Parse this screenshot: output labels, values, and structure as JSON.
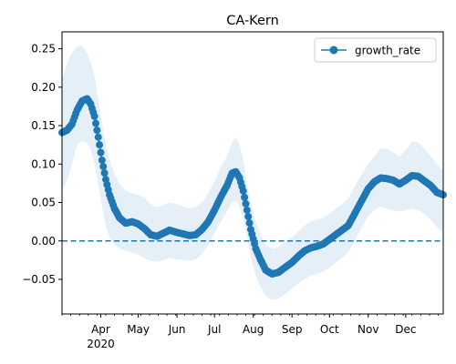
{
  "chart_data": {
    "type": "line",
    "title": "CA-Kern",
    "xlabel": "",
    "ylabel": "",
    "legend": {
      "position": "top-right",
      "entries": [
        "growth_rate"
      ]
    },
    "xlim": [
      "2020-03-01",
      "2020-12-31"
    ],
    "ylim": [
      -0.095,
      0.272
    ],
    "x_ticks": [
      {
        "date": "2020-04-01",
        "label": "Apr"
      },
      {
        "date": "2020-05-01",
        "label": "May"
      },
      {
        "date": "2020-06-01",
        "label": "Jun"
      },
      {
        "date": "2020-07-01",
        "label": "Jul"
      },
      {
        "date": "2020-08-01",
        "label": "Aug"
      },
      {
        "date": "2020-09-01",
        "label": "Sep"
      },
      {
        "date": "2020-10-01",
        "label": "Oct"
      },
      {
        "date": "2020-11-01",
        "label": "Nov"
      },
      {
        "date": "2020-12-01",
        "label": "Dec"
      }
    ],
    "year_label": "2020",
    "y_ticks": [
      -0.05,
      0.0,
      0.05,
      0.1,
      0.15,
      0.2,
      0.25
    ],
    "reference_line": {
      "y": 0.0,
      "style": "dashed"
    },
    "colors": {
      "series": "#1f77b4",
      "band": "#dce9f5"
    },
    "series": [
      {
        "name": "growth_rate",
        "marker": "circle",
        "x": [
          "2020-03-01",
          "2020-03-05",
          "2020-03-09",
          "2020-03-13",
          "2020-03-17",
          "2020-03-21",
          "2020-03-24",
          "2020-03-27",
          "2020-03-30",
          "2020-04-02",
          "2020-04-05",
          "2020-04-08",
          "2020-04-12",
          "2020-04-16",
          "2020-04-21",
          "2020-04-26",
          "2020-05-01",
          "2020-05-06",
          "2020-05-11",
          "2020-05-16",
          "2020-05-21",
          "2020-05-26",
          "2020-06-01",
          "2020-06-06",
          "2020-06-11",
          "2020-06-16",
          "2020-06-21",
          "2020-06-26",
          "2020-07-01",
          "2020-07-06",
          "2020-07-11",
          "2020-07-15",
          "2020-07-18",
          "2020-07-21",
          "2020-07-24",
          "2020-07-27",
          "2020-07-30",
          "2020-08-03",
          "2020-08-07",
          "2020-08-11",
          "2020-08-16",
          "2020-08-21",
          "2020-08-26",
          "2020-09-01",
          "2020-09-06",
          "2020-09-11",
          "2020-09-16",
          "2020-09-21",
          "2020-09-26",
          "2020-10-01",
          "2020-10-06",
          "2020-10-11",
          "2020-10-16",
          "2020-10-21",
          "2020-10-26",
          "2020-11-01",
          "2020-11-06",
          "2020-11-11",
          "2020-11-16",
          "2020-11-21",
          "2020-11-26",
          "2020-12-01",
          "2020-12-06",
          "2020-12-11",
          "2020-12-16",
          "2020-12-21",
          "2020-12-26",
          "2020-12-31"
        ],
        "y": [
          0.141,
          0.144,
          0.152,
          0.17,
          0.182,
          0.185,
          0.178,
          0.162,
          0.135,
          0.105,
          0.08,
          0.06,
          0.042,
          0.03,
          0.023,
          0.025,
          0.022,
          0.016,
          0.008,
          0.006,
          0.01,
          0.014,
          0.011,
          0.009,
          0.007,
          0.008,
          0.015,
          0.025,
          0.04,
          0.057,
          0.072,
          0.088,
          0.09,
          0.082,
          0.065,
          0.04,
          0.015,
          -0.01,
          -0.025,
          -0.038,
          -0.043,
          -0.041,
          -0.035,
          -0.028,
          -0.02,
          -0.013,
          -0.009,
          -0.007,
          -0.004,
          0.002,
          0.008,
          0.014,
          0.02,
          0.035,
          0.05,
          0.068,
          0.077,
          0.082,
          0.081,
          0.079,
          0.074,
          0.079,
          0.085,
          0.084,
          0.078,
          0.072,
          0.063,
          0.06
        ],
        "lower": [
          0.065,
          0.078,
          0.1,
          0.125,
          0.13,
          0.128,
          0.12,
          0.1,
          0.075,
          0.045,
          0.02,
          0.005,
          -0.005,
          -0.01,
          -0.013,
          -0.015,
          -0.018,
          -0.022,
          -0.026,
          -0.027,
          -0.025,
          -0.022,
          -0.024,
          -0.025,
          -0.026,
          -0.024,
          -0.017,
          -0.005,
          0.01,
          0.025,
          0.038,
          0.05,
          0.052,
          0.045,
          0.028,
          0.005,
          -0.02,
          -0.045,
          -0.06,
          -0.072,
          -0.077,
          -0.075,
          -0.07,
          -0.062,
          -0.055,
          -0.05,
          -0.045,
          -0.043,
          -0.04,
          -0.035,
          -0.028,
          -0.022,
          -0.015,
          0.0,
          0.015,
          0.032,
          0.04,
          0.045,
          0.042,
          0.04,
          0.038,
          0.04,
          0.042,
          0.04,
          0.035,
          0.028,
          0.018,
          0.01
        ],
        "upper": [
          0.21,
          0.23,
          0.245,
          0.253,
          0.255,
          0.245,
          0.232,
          0.215,
          0.185,
          0.155,
          0.125,
          0.105,
          0.088,
          0.075,
          0.065,
          0.062,
          0.06,
          0.056,
          0.048,
          0.044,
          0.046,
          0.05,
          0.048,
          0.045,
          0.042,
          0.045,
          0.05,
          0.062,
          0.078,
          0.095,
          0.11,
          0.128,
          0.135,
          0.125,
          0.105,
          0.075,
          0.05,
          0.025,
          0.008,
          -0.005,
          -0.01,
          -0.008,
          -0.002,
          0.005,
          0.012,
          0.02,
          0.025,
          0.028,
          0.03,
          0.035,
          0.042,
          0.048,
          0.055,
          0.07,
          0.085,
          0.1,
          0.11,
          0.12,
          0.12,
          0.115,
          0.11,
          0.118,
          0.13,
          0.128,
          0.12,
          0.11,
          0.1,
          0.09
        ]
      }
    ]
  }
}
